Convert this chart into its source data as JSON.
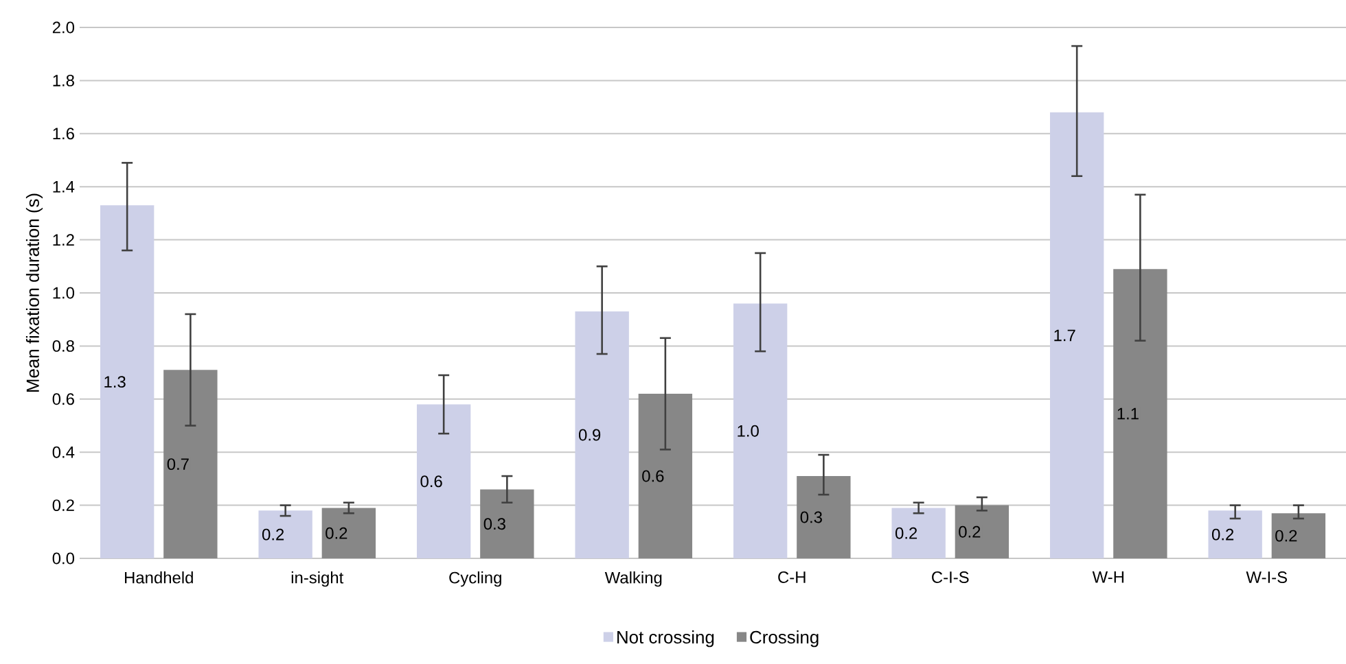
{
  "chart_data": {
    "type": "bar",
    "ylabel": "Mean fixation  duration  (s)",
    "categories": [
      "Handheld",
      "in-sight",
      "Cycling",
      "Walking",
      "C-H",
      "C-I-S",
      "W-H",
      "W-I-S"
    ],
    "series": [
      {
        "name": "Not crossing",
        "color": "#cdd0e8",
        "values": [
          1.33,
          0.18,
          0.58,
          0.93,
          0.96,
          0.19,
          1.68,
          0.18
        ],
        "errors": [
          [
            1.16,
            1.49
          ],
          [
            0.16,
            0.2
          ],
          [
            0.47,
            0.69
          ],
          [
            0.77,
            1.1
          ],
          [
            0.78,
            1.15
          ],
          [
            0.17,
            0.21
          ],
          [
            1.44,
            1.93
          ],
          [
            0.15,
            0.2
          ]
        ],
        "value_labels": [
          "1.3",
          "0.2",
          "0.6",
          "0.9",
          "1.0",
          "0.2",
          "1.7",
          "0.2"
        ]
      },
      {
        "name": "Crossing",
        "color": "#878787",
        "values": [
          0.71,
          0.19,
          0.26,
          0.62,
          0.31,
          0.2,
          1.09,
          0.17
        ],
        "errors": [
          [
            0.5,
            0.92
          ],
          [
            0.17,
            0.21
          ],
          [
            0.21,
            0.31
          ],
          [
            0.41,
            0.83
          ],
          [
            0.24,
            0.39
          ],
          [
            0.18,
            0.23
          ],
          [
            0.82,
            1.37
          ],
          [
            0.15,
            0.2
          ]
        ],
        "value_labels": [
          "0.7",
          "0.2",
          "0.3",
          "0.6",
          "0.3",
          "0.2",
          "1.1",
          "0.2"
        ]
      }
    ],
    "ylim": [
      0,
      2.0
    ],
    "yticks": [
      {
        "value": 0,
        "label": "0.0"
      },
      {
        "value": 0.2,
        "label": "0.2"
      },
      {
        "value": 0.4,
        "label": "0.4"
      },
      {
        "value": 0.6,
        "label": "0.6"
      },
      {
        "value": 0.8,
        "label": "0.8"
      },
      {
        "value": 1.0,
        "label": "1.0"
      },
      {
        "value": 1.2,
        "label": "1.2"
      },
      {
        "value": 1.4,
        "label": "1.4"
      },
      {
        "value": 1.6,
        "label": "1.6"
      },
      {
        "value": 1.8,
        "label": "1.8"
      },
      {
        "value": 2.0,
        "label": "2.0"
      }
    ],
    "grid": "y",
    "legend": "bottom"
  }
}
